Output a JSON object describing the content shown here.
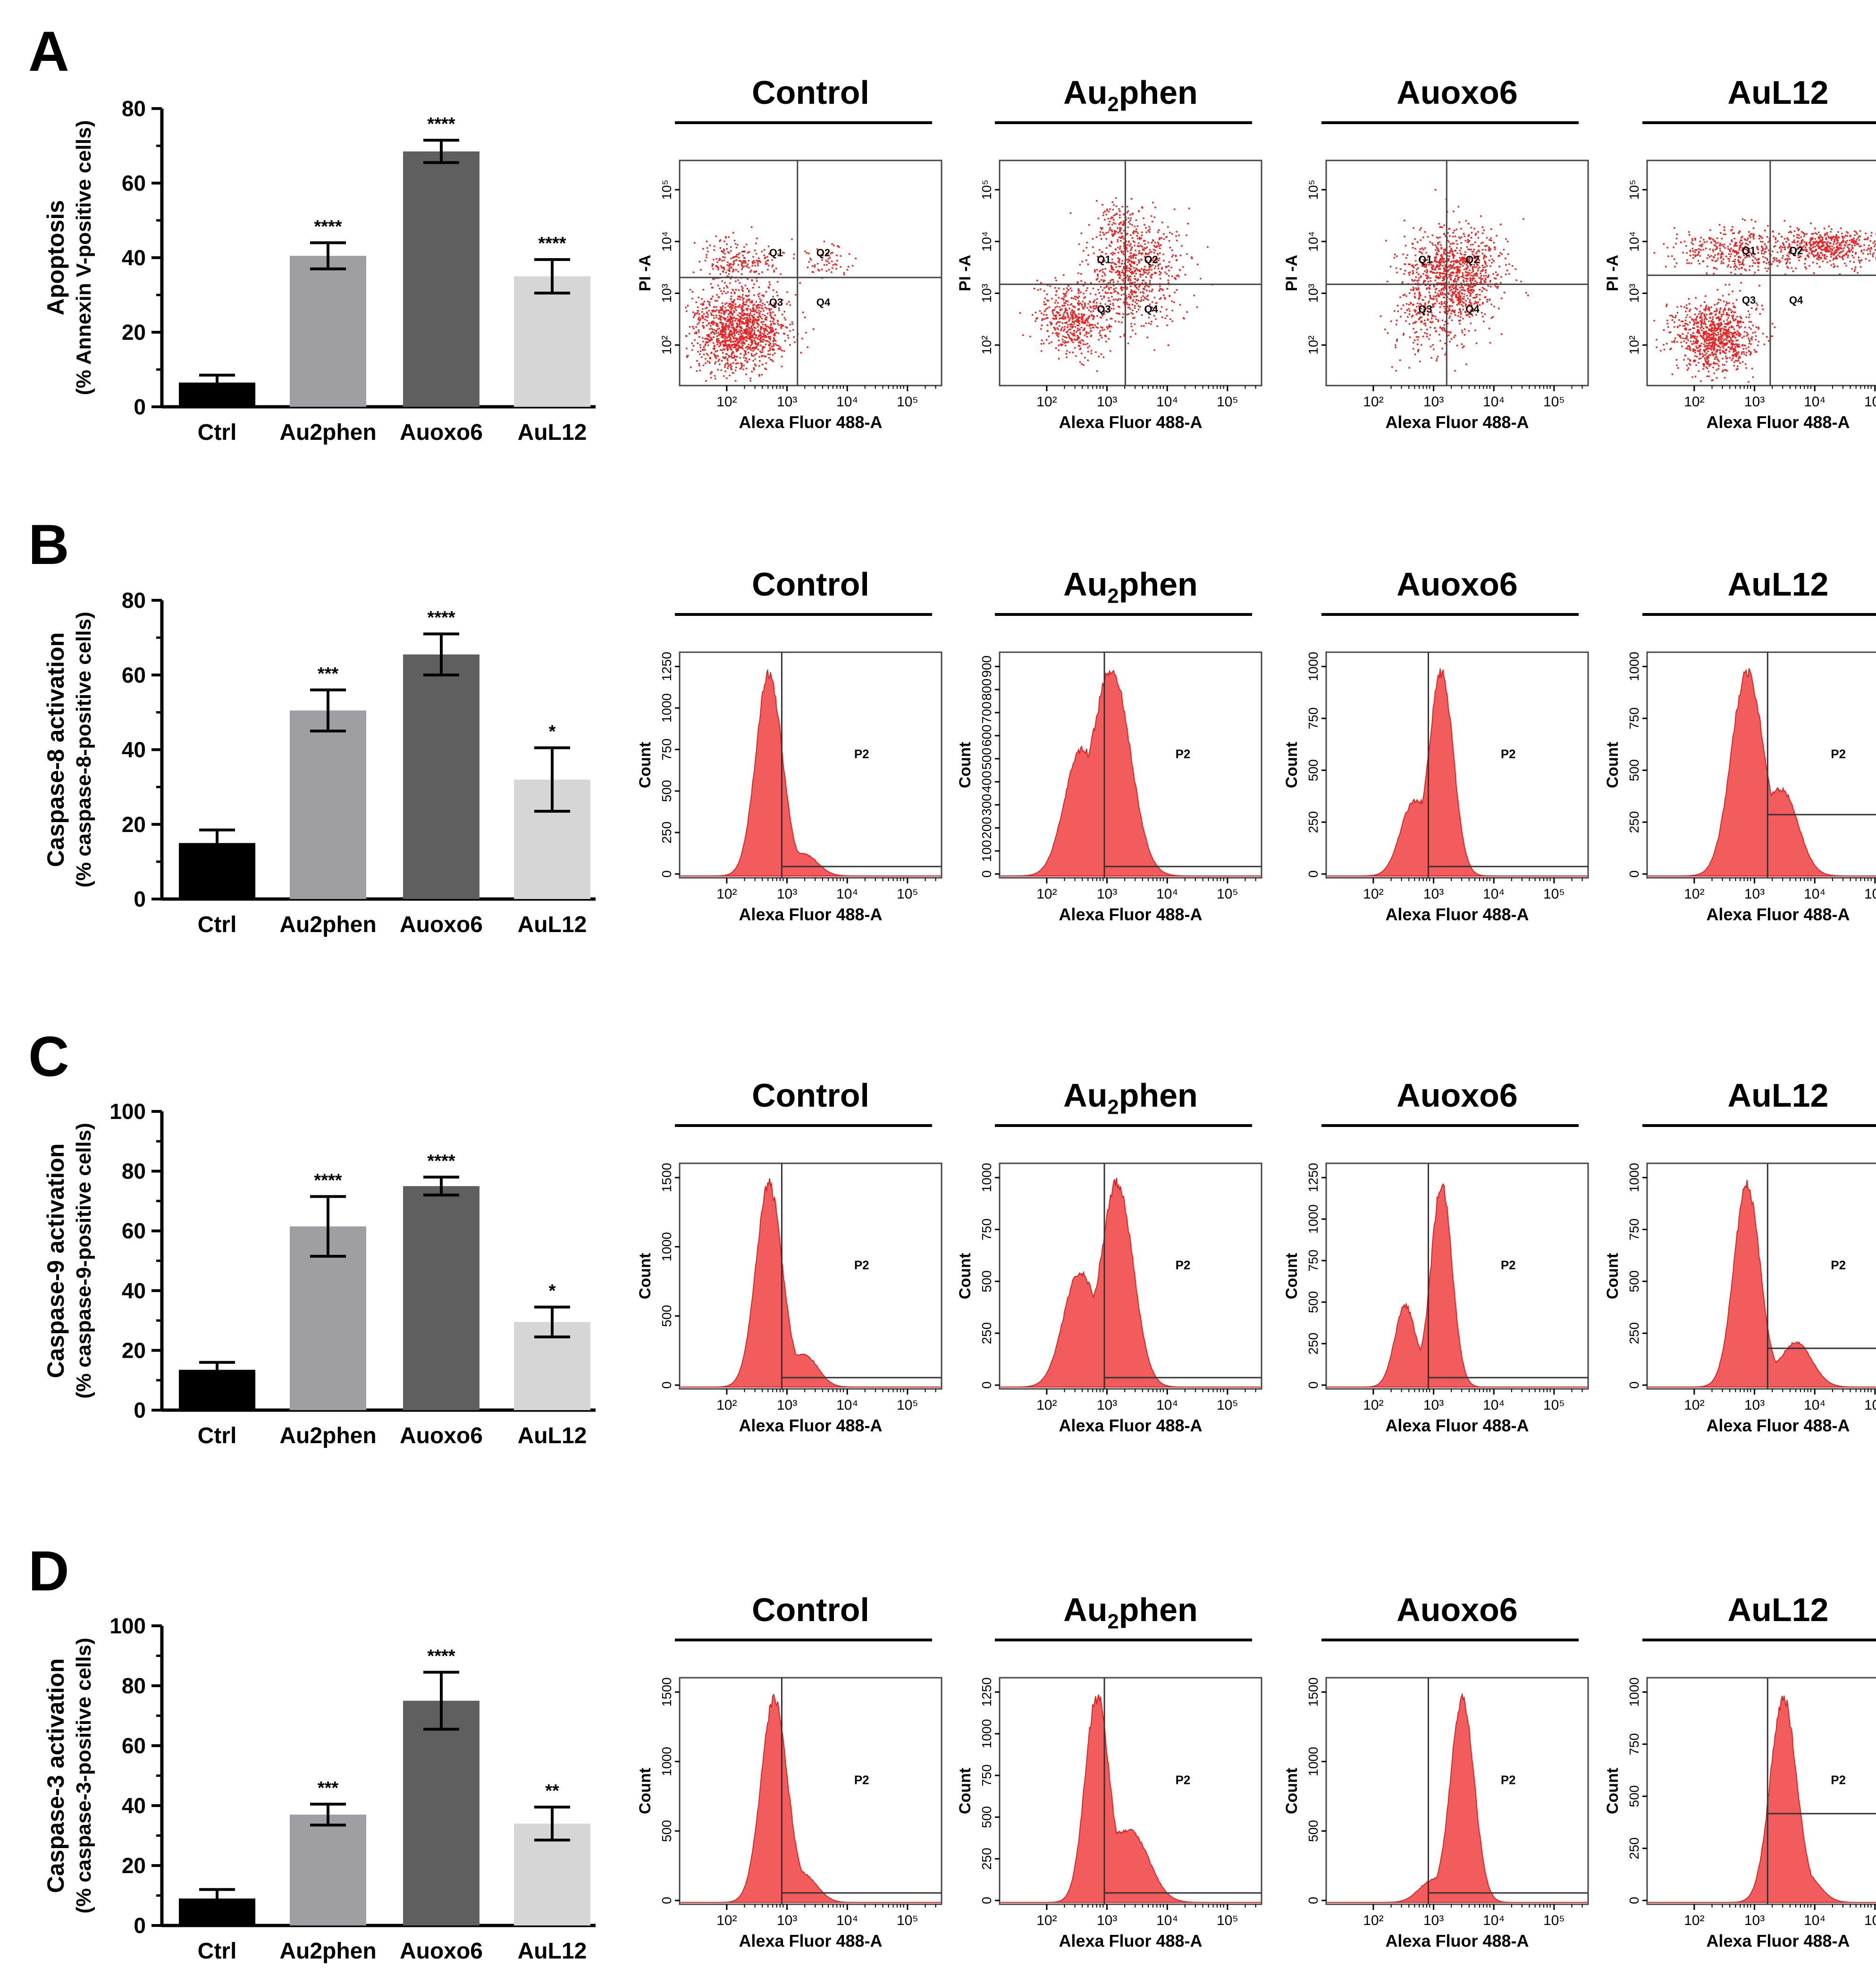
{
  "figure": {
    "colors": {
      "ctrl": "#000000",
      "au2phen": "#9e9ea3",
      "auoxo6": "#5f5f5f",
      "aul12": "#d6d6d6",
      "histogram": "#f25c5c",
      "dot": "#ee2020"
    }
  },
  "chart_data": [
    {
      "panel": "A",
      "type": "bar",
      "ylabel_line1": "Apoptosis",
      "ylabel_line2": "(% Annexin V-positive cells)",
      "categories": [
        "Ctrl",
        "Au2phen",
        "Auoxo6",
        "AuL12"
      ],
      "values": [
        6.5,
        40.5,
        68.5,
        35
      ],
      "errors": [
        2,
        3.5,
        3,
        4.5
      ],
      "significance": [
        "",
        "****",
        "****",
        "****"
      ],
      "ylim": [
        0,
        80
      ],
      "yticks": [
        0,
        20,
        40,
        60,
        80
      ],
      "flow_type": "scatter",
      "flow_panels": [
        {
          "title": "Control",
          "xlabel": "Alexa Fluor 488-A",
          "ylabel": "PI -A",
          "quadrants": [
            "Q1",
            "Q2",
            "Q3",
            "Q4"
          ]
        },
        {
          "title": "Au2phen",
          "xlabel": "Alexa Fluor 488-A",
          "ylabel": "PI -A",
          "quadrants": [
            "Q1",
            "Q2",
            "Q3",
            "Q4"
          ]
        },
        {
          "title": "Auoxo6",
          "xlabel": "Alexa Fluor 488-A",
          "ylabel": "PI -A",
          "quadrants": [
            "Q1",
            "Q2",
            "Q3",
            "Q4"
          ]
        },
        {
          "title": "AuL12",
          "xlabel": "Alexa Fluor 488-A",
          "ylabel": "PI -A",
          "quadrants": [
            "Q1",
            "Q2",
            "Q3",
            "Q4"
          ]
        }
      ]
    },
    {
      "panel": "B",
      "type": "bar",
      "ylabel_line1": "Caspase-8 activation",
      "ylabel_line2": "(% caspase-8-positive cells)",
      "categories": [
        "Ctrl",
        "Au2phen",
        "Auoxo6",
        "AuL12"
      ],
      "values": [
        15,
        50.5,
        65.5,
        32
      ],
      "errors": [
        3.5,
        5.5,
        5.5,
        8.5
      ],
      "significance": [
        "",
        "***",
        "****",
        "*"
      ],
      "ylim": [
        0,
        80
      ],
      "yticks": [
        0,
        20,
        40,
        60,
        80
      ],
      "flow_type": "histogram",
      "flow_panels": [
        {
          "title": "Control",
          "xlabel": "Alexa Fluor 488-A",
          "ylabel": "Count",
          "gate": "P2",
          "yticks": [
            "0",
            "250",
            "500",
            "750",
            "1000",
            "1250"
          ]
        },
        {
          "title": "Au2phen",
          "xlabel": "Alexa Fluor 488-A",
          "ylabel": "Count",
          "gate": "P2",
          "yticks": [
            "0",
            "100",
            "200",
            "300",
            "400",
            "500",
            "600",
            "700",
            "800",
            "900"
          ]
        },
        {
          "title": "Auoxo6",
          "xlabel": "Alexa Fluor 488-A",
          "ylabel": "Count",
          "gate": "P2",
          "yticks": [
            "0",
            "250",
            "500",
            "750",
            "1000"
          ]
        },
        {
          "title": "AuL12",
          "xlabel": "Alexa Fluor 488-A",
          "ylabel": "Count",
          "gate": "P2",
          "yticks": [
            "0",
            "250",
            "500",
            "750",
            "1000"
          ]
        }
      ]
    },
    {
      "panel": "C",
      "type": "bar",
      "ylabel_line1": "Caspase-9 activation",
      "ylabel_line2": "(% caspase-9-positive cells)",
      "categories": [
        "Ctrl",
        "Au2phen",
        "Auoxo6",
        "AuL12"
      ],
      "values": [
        13.5,
        61.5,
        75,
        29.5
      ],
      "errors": [
        2.5,
        10,
        3,
        5
      ],
      "significance": [
        "",
        "****",
        "****",
        "*"
      ],
      "ylim": [
        0,
        100
      ],
      "yticks": [
        0,
        20,
        40,
        60,
        80,
        100
      ],
      "flow_type": "histogram",
      "flow_panels": [
        {
          "title": "Control",
          "xlabel": "Alexa Fluor 488-A",
          "ylabel": "Count",
          "gate": "P2",
          "yticks": [
            "0",
            "500",
            "1000",
            "1500"
          ]
        },
        {
          "title": "Au2phen",
          "xlabel": "Alexa Fluor 488-A",
          "ylabel": "Count",
          "gate": "P2",
          "yticks": [
            "0",
            "250",
            "500",
            "750",
            "1000"
          ]
        },
        {
          "title": "Auoxo6",
          "xlabel": "Alexa Fluor 488-A",
          "ylabel": "Count",
          "gate": "P2",
          "yticks": [
            "0",
            "250",
            "500",
            "750",
            "1000",
            "1250"
          ]
        },
        {
          "title": "AuL12",
          "xlabel": "Alexa Fluor 488-A",
          "ylabel": "Count",
          "gate": "P2",
          "yticks": [
            "0",
            "250",
            "500",
            "750",
            "1000"
          ]
        }
      ]
    },
    {
      "panel": "D",
      "type": "bar",
      "ylabel_line1": "Caspase-3 activation",
      "ylabel_line2": "(% caspase-3-positive cells)",
      "categories": [
        "Ctrl",
        "Au2phen",
        "Auoxo6",
        "AuL12"
      ],
      "values": [
        9,
        37,
        75,
        34
      ],
      "errors": [
        3,
        3.5,
        9.5,
        5.5
      ],
      "significance": [
        "",
        "***",
        "****",
        "**"
      ],
      "ylim": [
        0,
        100
      ],
      "yticks": [
        0,
        20,
        40,
        60,
        80,
        100
      ],
      "flow_type": "histogram",
      "flow_panels": [
        {
          "title": "Control",
          "xlabel": "Alexa Fluor 488-A",
          "ylabel": "Count",
          "gate": "P2",
          "yticks": [
            "0",
            "500",
            "1000",
            "1500"
          ]
        },
        {
          "title": "Au2phen",
          "xlabel": "Alexa Fluor 488-A",
          "ylabel": "Count",
          "gate": "P2",
          "yticks": [
            "0",
            "250",
            "500",
            "750",
            "1000",
            "1250"
          ]
        },
        {
          "title": "Auoxo6",
          "xlabel": "Alexa Fluor 488-A",
          "ylabel": "Count",
          "gate": "P2",
          "yticks": [
            "0",
            "500",
            "1000",
            "1500"
          ]
        },
        {
          "title": "AuL12",
          "xlabel": "Alexa Fluor 488-A",
          "ylabel": "Count",
          "gate": "P2",
          "yticks": [
            "0",
            "250",
            "500",
            "750",
            "1000"
          ]
        }
      ]
    }
  ]
}
